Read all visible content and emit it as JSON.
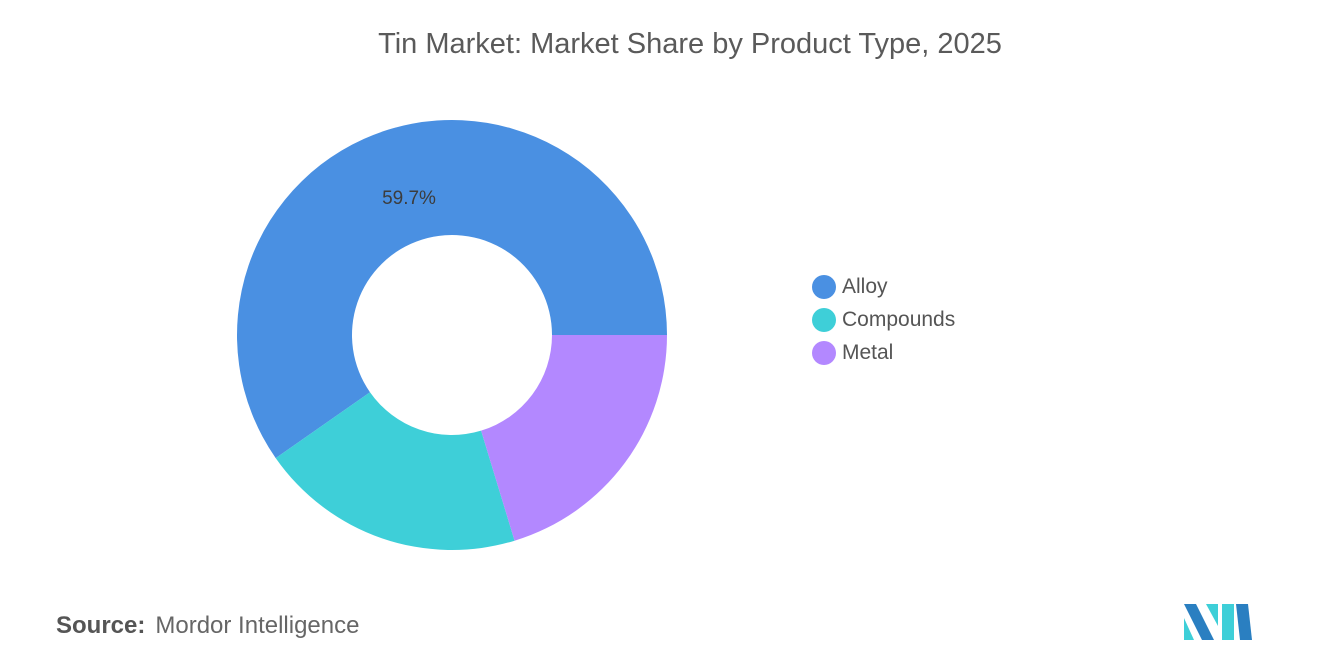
{
  "chart_data": {
    "type": "pie",
    "variant": "donut",
    "title": "Tin Market: Market Share by Product Type, 2025",
    "categories": [
      "Alloy",
      "Compounds",
      "Metal"
    ],
    "values": [
      59.7,
      20.0,
      20.3
    ],
    "data_labels": [
      "59.7%",
      "",
      ""
    ],
    "colors": [
      "#4a90e2",
      "#3ecfd8",
      "#b388ff"
    ],
    "legend_position": "right",
    "unit": "%"
  },
  "source": {
    "label": "Source:",
    "text": "Mordor Intelligence"
  },
  "logo": {
    "name": "mordor-intelligence-logo",
    "colors": [
      "#2a7fc1",
      "#3ecfd8"
    ]
  }
}
